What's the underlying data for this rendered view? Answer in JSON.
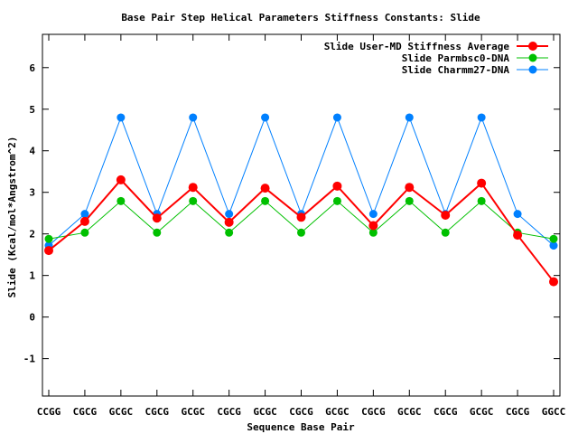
{
  "chart_data": {
    "type": "line",
    "title": "Base Pair Step Helical Parameters Stiffness Constants: Slide",
    "xlabel": "Sequence Base Pair",
    "ylabel": "Slide (Kcal/mol*Angstrom^2)",
    "categories": [
      "CCGG",
      "CGCG",
      "GCGC",
      "CGCG",
      "GCGC",
      "CGCG",
      "GCGC",
      "CGCG",
      "GCGC",
      "CGCG",
      "GCGC",
      "CGCG",
      "GCGC",
      "CGCG",
      "GGCC"
    ],
    "ylim": [
      -1.9,
      6.8
    ],
    "yticks": [
      -1,
      0,
      1,
      2,
      3,
      4,
      5,
      6
    ],
    "legend_position": "top-right",
    "grid": false,
    "series": [
      {
        "name": "Slide User-MD Stiffness Average",
        "color": "#ff0000",
        "values": [
          1.6,
          2.3,
          3.3,
          2.38,
          3.12,
          2.28,
          3.1,
          2.4,
          3.15,
          2.2,
          3.12,
          2.45,
          3.22,
          1.97,
          0.85
        ]
      },
      {
        "name": "Slide Parmbsc0-DNA",
        "color": "#00c000",
        "values": [
          1.88,
          2.03,
          2.79,
          2.03,
          2.79,
          2.03,
          2.79,
          2.03,
          2.79,
          2.03,
          2.79,
          2.03,
          2.79,
          2.03,
          1.88
        ]
      },
      {
        "name": "Slide Charmm27-DNA",
        "color": "#0080ff",
        "values": [
          1.72,
          2.48,
          4.8,
          2.48,
          4.8,
          2.48,
          4.8,
          2.48,
          4.8,
          2.48,
          4.8,
          2.48,
          4.8,
          2.48,
          1.72
        ]
      }
    ]
  }
}
